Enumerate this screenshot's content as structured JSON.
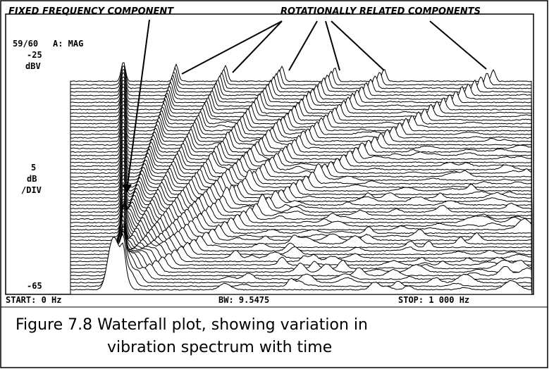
{
  "figure": {
    "annotations": {
      "fixed": "FIXED FREQUENCY COMPONENT",
      "rotational": "ROTATIONALLY RELATED COMPONENTS"
    },
    "header": {
      "trace": "59/60",
      "mode": "A: MAG"
    },
    "y_axis": {
      "top": "-25",
      "unit": "dBV",
      "scale": "5",
      "scale_unit": "dB",
      "scale_per": "/DIV",
      "bottom": "-65"
    },
    "footer": {
      "start": "START: 0 Hz",
      "bw": "BW: 9.5475",
      "stop": "STOP: 1 000 Hz"
    },
    "caption": {
      "line1": "Figure 7.8   Waterfall plot, showing variation in",
      "line2": "vibration spectrum with time"
    }
  }
}
